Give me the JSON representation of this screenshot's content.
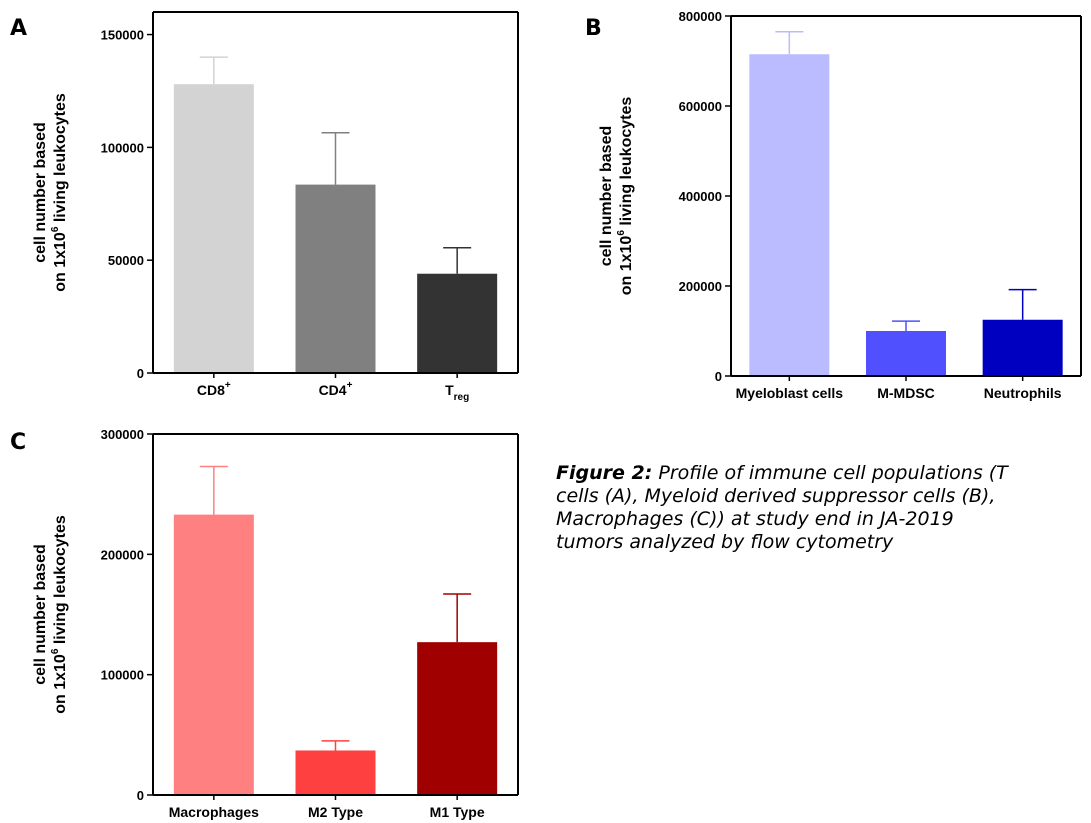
{
  "chart_data": [
    {
      "type": "bar",
      "panel": "A",
      "ylabel_line1": "cell number based",
      "ylabel_line2": [
        "on 1x10",
        "6",
        " living leukocytes"
      ],
      "ylim": [
        0,
        160000
      ],
      "yticks": [
        "0",
        "50000",
        "100000",
        "150000"
      ],
      "ytick_values": [
        0,
        50000,
        100000,
        150000
      ],
      "categories": [
        {
          "base": "CD8",
          "sup": "+",
          "sub": ""
        },
        {
          "base": "CD4",
          "sup": "+",
          "sub": ""
        },
        {
          "base": "T",
          "sup": "",
          "sub": "reg"
        }
      ],
      "values": [
        128000,
        83500,
        44000
      ],
      "errors": [
        12000,
        23000,
        11500
      ],
      "colors": [
        "#d3d3d3",
        "#808080",
        "#333333"
      ]
    },
    {
      "type": "bar",
      "panel": "B",
      "ylabel_line1": "cell number based",
      "ylabel_line2": [
        "on 1x10",
        "6",
        " living leukocytes"
      ],
      "ylim": [
        0,
        800000
      ],
      "yticks": [
        "0",
        "200000",
        "400000",
        "600000",
        "800000"
      ],
      "ytick_values": [
        0,
        200000,
        400000,
        600000,
        800000
      ],
      "categories": [
        {
          "base": "Myeloblast cells",
          "sup": "",
          "sub": ""
        },
        {
          "base": "M-MDSC",
          "sup": "",
          "sub": ""
        },
        {
          "base": "Neutrophils",
          "sup": "",
          "sub": ""
        }
      ],
      "values": [
        715000,
        100000,
        125000
      ],
      "errors": [
        50000,
        22000,
        67000
      ],
      "colors": [
        "#bbbbff",
        "#5050ff",
        "#0000c0"
      ]
    },
    {
      "type": "bar",
      "panel": "C",
      "ylabel_line1": "cell number based",
      "ylabel_line2": [
        "on 1x10",
        "6",
        " living leukocytes"
      ],
      "ylim": [
        0,
        300000
      ],
      "yticks": [
        "0",
        "100000",
        "200000",
        "300000"
      ],
      "ytick_values": [
        0,
        100000,
        200000,
        300000
      ],
      "categories": [
        {
          "base": "Macrophages",
          "sup": "",
          "sub": ""
        },
        {
          "base": "M2 Type",
          "sup": "",
          "sub": ""
        },
        {
          "base": "M1 Type",
          "sup": "",
          "sub": ""
        }
      ],
      "values": [
        233000,
        37000,
        127000
      ],
      "errors": [
        40000,
        8000,
        40000
      ],
      "colors": [
        "#ff8080",
        "#ff4040",
        "#a00000"
      ]
    }
  ],
  "caption": {
    "title": "Figure 2:",
    "line1": "Profile of immune cell populations (T",
    "line2": "cells (A), Myeloid derived suppressor cells (B),",
    "line3": "Macrophages (C)) at study end in JA-2019",
    "line4": "tumors analyzed by flow cytometry"
  }
}
